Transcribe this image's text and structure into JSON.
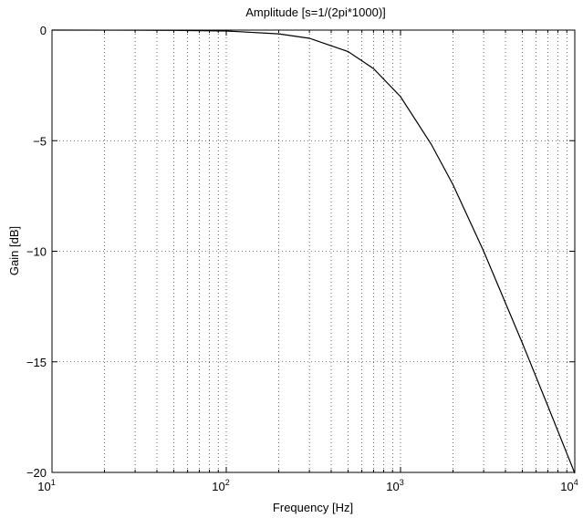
{
  "chart_data": {
    "type": "line",
    "title": "Amplitude [s=1/(2pi*1000)]",
    "xlabel": "Frequency [Hz]",
    "ylabel": "Gain [dB]",
    "xscale": "log",
    "xlim": [
      10,
      10000
    ],
    "ylim": [
      -20,
      0
    ],
    "xticks": [
      {
        "base": "10",
        "exp": "1",
        "value": 10
      },
      {
        "base": "10",
        "exp": "2",
        "value": 100
      },
      {
        "base": "10",
        "exp": "3",
        "value": 1000
      },
      {
        "base": "10",
        "exp": "4",
        "value": 10000
      }
    ],
    "yticks": [
      {
        "label": "0",
        "value": 0
      },
      {
        "label": "−5",
        "value": -5
      },
      {
        "label": "−10",
        "value": -10
      },
      {
        "label": "−15",
        "value": -15
      },
      {
        "label": "−20",
        "value": -20
      }
    ],
    "grid": true,
    "series": [
      {
        "x": [
          10,
          20,
          50,
          100,
          200,
          300,
          500,
          700,
          1000,
          1500,
          2000,
          3000,
          5000,
          7000,
          10000
        ],
        "y": [
          0,
          -0.002,
          -0.01,
          -0.04,
          -0.17,
          -0.37,
          -0.97,
          -1.74,
          -3.01,
          -5.16,
          -6.99,
          -10.0,
          -14.15,
          -16.99,
          -20.04
        ]
      }
    ],
    "line_color": "#000000"
  }
}
